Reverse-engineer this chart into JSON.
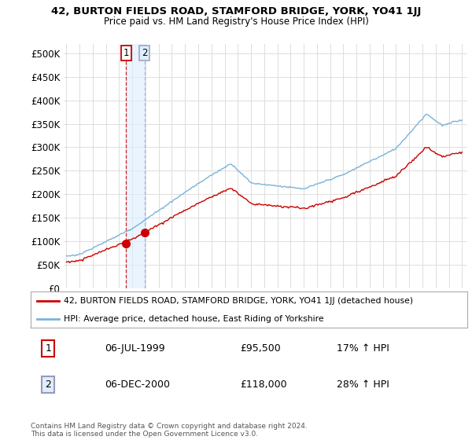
{
  "title": "42, BURTON FIELDS ROAD, STAMFORD BRIDGE, YORK, YO41 1JJ",
  "subtitle": "Price paid vs. HM Land Registry's House Price Index (HPI)",
  "legend_line1": "42, BURTON FIELDS ROAD, STAMFORD BRIDGE, YORK, YO41 1JJ (detached house)",
  "legend_line2": "HPI: Average price, detached house, East Riding of Yorkshire",
  "transaction1_date": "06-JUL-1999",
  "transaction1_price": "£95,500",
  "transaction1_hpi": "17% ↑ HPI",
  "transaction2_date": "06-DEC-2000",
  "transaction2_price": "£118,000",
  "transaction2_hpi": "28% ↑ HPI",
  "footer": "Contains HM Land Registry data © Crown copyright and database right 2024.\nThis data is licensed under the Open Government Licence v3.0.",
  "hpi_color": "#7ab4d8",
  "price_color": "#cc0000",
  "marker_color": "#cc0000",
  "vline1_color": "#cc0000",
  "vline2_color": "#aaaacc",
  "shade_color": "#ddeeff",
  "bg_color": "#ffffff",
  "grid_color": "#dddddd",
  "ylim": [
    0,
    520000
  ],
  "yticks": [
    0,
    50000,
    100000,
    150000,
    200000,
    250000,
    300000,
    350000,
    400000,
    450000,
    500000
  ],
  "transaction1_year": 1999.54,
  "transaction2_year": 2000.92,
  "transaction1_value": 95500,
  "transaction2_value": 118000
}
